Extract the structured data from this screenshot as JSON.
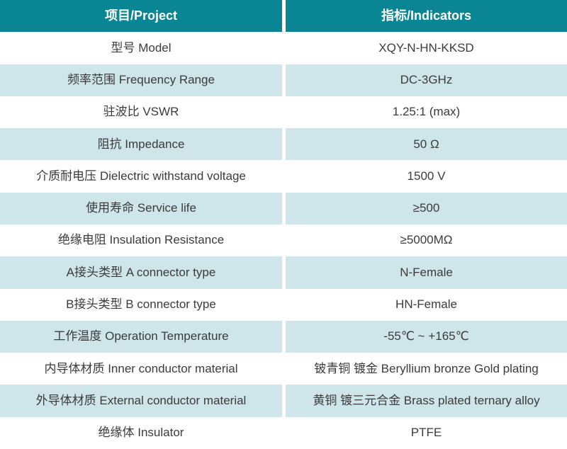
{
  "colors": {
    "header_bg": "#0a8593",
    "header_text": "#ffffff",
    "row_bg": "#ffffff",
    "row_alt_bg": "#cee5e9",
    "body_text": "#3b3b3b"
  },
  "table": {
    "headers": {
      "project": "项目/Project",
      "indicators": "指标/Indicators"
    },
    "rows": [
      {
        "project": "型号 Model",
        "indicator": "XQY-N-HN-KKSD"
      },
      {
        "project": "频率范围 Frequency Range",
        "indicator": "DC-3GHz"
      },
      {
        "project": "驻波比 VSWR",
        "indicator": "1.25:1 (max)"
      },
      {
        "project": "阻抗 Impedance",
        "indicator": "50 Ω"
      },
      {
        "project": "介质耐电压 Dielectric withstand voltage",
        "indicator": "1500 V"
      },
      {
        "project": "使用寿命 Service life",
        "indicator": "≥500"
      },
      {
        "project": "绝缘电阻 Insulation Resistance",
        "indicator": "≥5000MΩ"
      },
      {
        "project": "A接头类型 A connector type",
        "indicator": "N-Female"
      },
      {
        "project": "B接头类型 B connector type",
        "indicator": "HN-Female"
      },
      {
        "project": "工作温度 Operation Temperature",
        "indicator": "-55℃ ~ +165℃"
      },
      {
        "project": "内导体材质 Inner conductor material",
        "indicator": "铍青铜 镀金 Beryllium bronze Gold plating"
      },
      {
        "project": "外导体材质 External conductor material",
        "indicator": "黄铜 镀三元合金 Brass plated ternary alloy"
      },
      {
        "project": "绝缘体 Insulator",
        "indicator": "PTFE"
      }
    ]
  }
}
